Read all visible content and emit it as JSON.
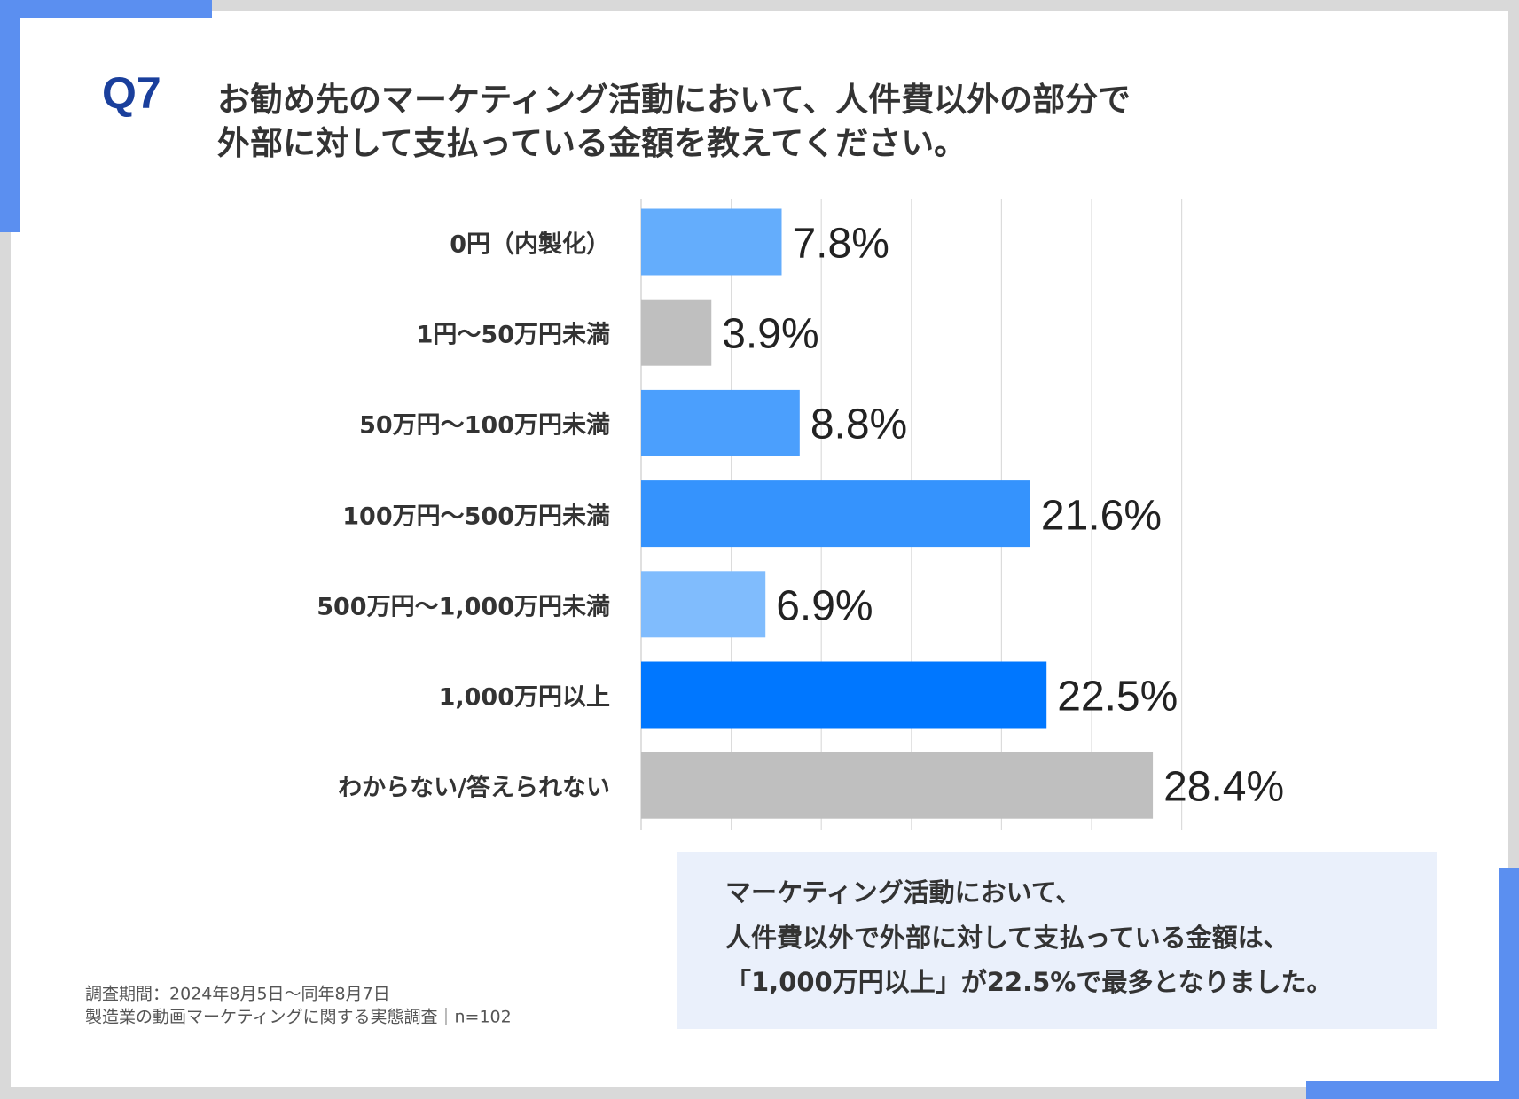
{
  "question_number": "Q7",
  "title_lines": [
    "お勧め先のマーケティング活動において、人件費以外の部分で",
    "外部に対して支払っている金額を教えてください。"
  ],
  "chart_data": {
    "type": "bar",
    "orientation": "horizontal",
    "categories": [
      "0円（内製化）",
      "1円〜50万円未満",
      "50万円〜100万円未満",
      "100万円〜500万円未満",
      "500万円〜1,000万円未満",
      "1,000万円以上",
      "わからない/答えられない"
    ],
    "values": [
      7.8,
      3.9,
      8.8,
      21.6,
      6.9,
      22.5,
      28.4
    ],
    "value_labels": [
      "7.8%",
      "3.9%",
      "8.8%",
      "21.6%",
      "6.9%",
      "22.5%",
      "28.4%"
    ],
    "colors": [
      "#64adfc",
      "#bfbfbf",
      "#4b9ffd",
      "#3593fd",
      "#80bcfd",
      "#0077ff",
      "#bfbfbf"
    ],
    "xlim": [
      0,
      30
    ],
    "grid_step": 5,
    "grid": true,
    "unit": "%"
  },
  "summary_lines": [
    "マーケティング活動において、",
    "人件費以外で外部に対して支払っている金額は、",
    "「1,000万円以上」が22.5%で最多となりました。"
  ],
  "footer_lines": [
    "調査期間：2024年8月5日〜同年8月7日",
    "製造業の動画マーケティングに関する実態調査｜n=102"
  ]
}
